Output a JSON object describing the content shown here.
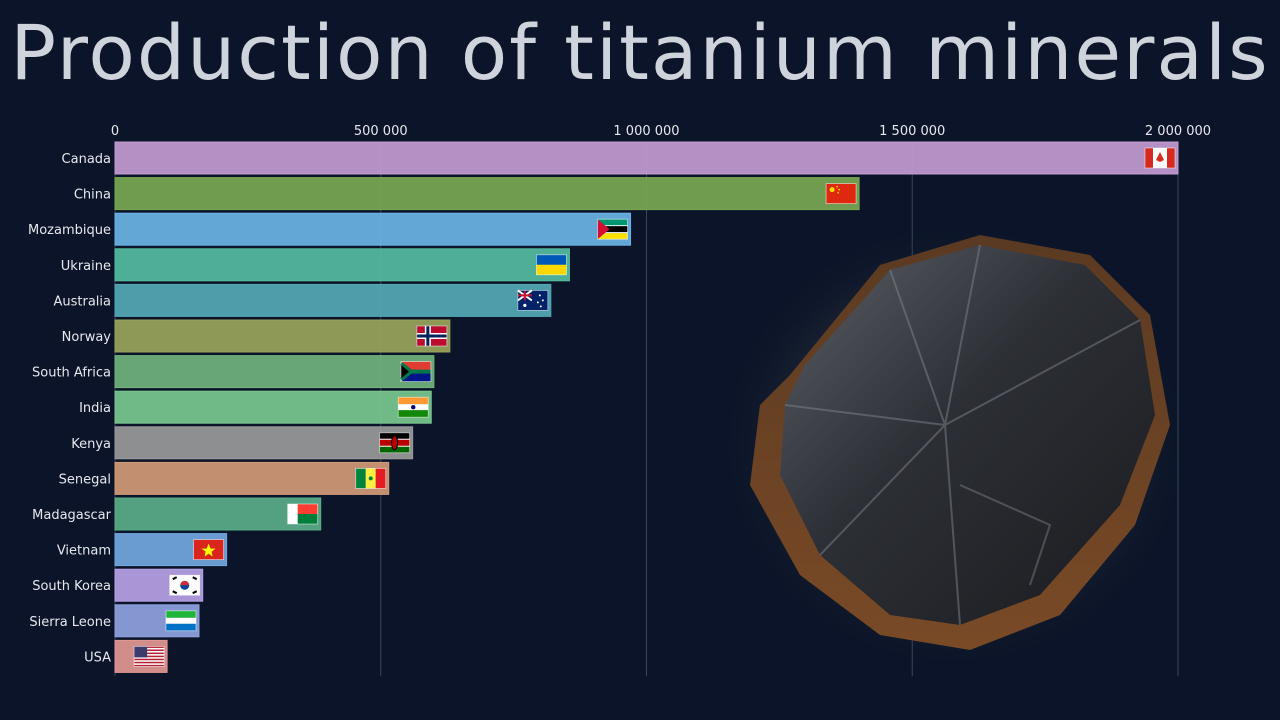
{
  "chart_data": {
    "type": "bar",
    "orientation": "horizontal",
    "title": "Production of titanium minerals",
    "xlabel": "",
    "ylabel": "",
    "xlim": [
      0,
      2000000
    ],
    "x_ticks": [
      "0",
      "500 000",
      "1 000 000",
      "1 500 000",
      "2 000 000"
    ],
    "x_tick_values": [
      0,
      500000,
      1000000,
      1500000,
      2000000
    ],
    "grid": true,
    "categories": [
      "Canada",
      "China",
      "Mozambique",
      "Ukraine",
      "Australia",
      "Norway",
      "South Africa",
      "India",
      "Kenya",
      "Senegal",
      "Madagascar",
      "Vietnam",
      "South Korea",
      "Sierra Leone",
      "USA"
    ],
    "values": [
      2000000,
      1400000,
      970000,
      855000,
      820000,
      630000,
      600000,
      595000,
      560000,
      515000,
      387000,
      210000,
      165000,
      158000,
      98000
    ],
    "colors": [
      "#c39bd3",
      "#7aa852",
      "#6bb4e6",
      "#55bda0",
      "#54a9b6",
      "#9aa55c",
      "#72b37c",
      "#79c98f",
      "#9a9a9a",
      "#d39a76",
      "#5aae88",
      "#74a8e0",
      "#b7a2e6",
      "#8fa3e0",
      "#e39892"
    ],
    "flags": [
      "canada-flag",
      "china-flag",
      "mozambique-flag",
      "ukraine-flag",
      "australia-flag",
      "norway-flag",
      "south-africa-flag",
      "india-flag",
      "kenya-flag",
      "senegal-flag",
      "madagascar-flag",
      "vietnam-flag",
      "south-korea-flag",
      "sierra-leone-flag",
      "usa-flag"
    ]
  },
  "decoration": {
    "image": "titanium-mineral-photo"
  }
}
